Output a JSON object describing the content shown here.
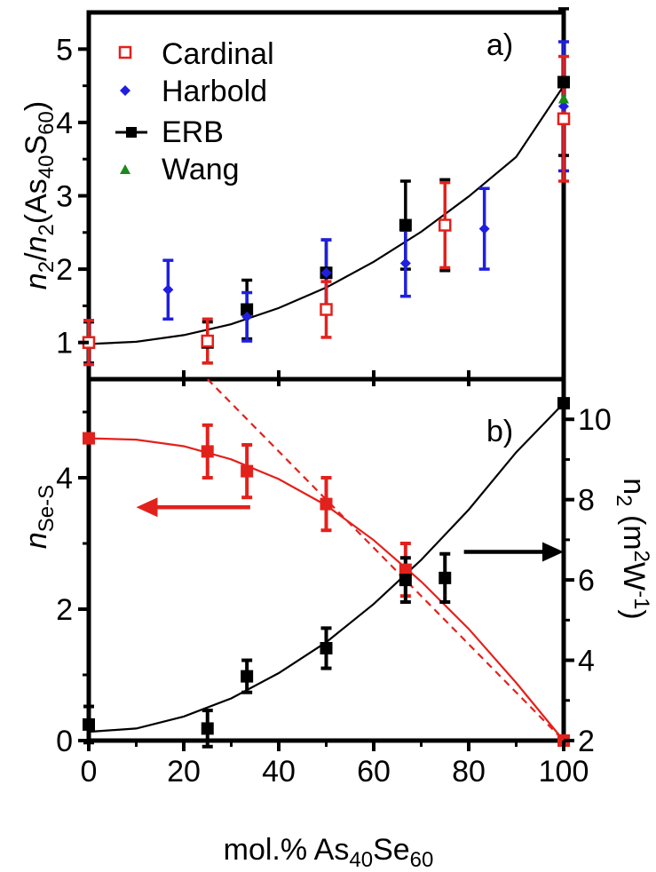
{
  "figure": {
    "xlabel": {
      "main": "mol.% As",
      "s1": "40",
      "mid": "Se",
      "s2": "60"
    }
  },
  "chart_data": [
    {
      "panel": "a)",
      "type": "scatter",
      "ylabel": {
        "n1": "n",
        "s1": "2",
        "slash": "/",
        "n2": "n",
        "s2": "2",
        "open": "(As",
        "s3": "40",
        "mid": "S",
        "s4": "60",
        "close": ")"
      },
      "xlim": [
        0,
        100
      ],
      "ylim": [
        0.5,
        5.5
      ],
      "xticks": [
        0,
        20,
        40,
        60,
        80,
        100
      ],
      "yticks": [
        1,
        2,
        3,
        4,
        5
      ],
      "grid": false,
      "legend_position": "top-left",
      "series": [
        {
          "name": "Cardinal",
          "marker": "open-square",
          "color": "#e3211c",
          "points": [
            {
              "x": 0,
              "y": 1.0,
              "err": 0.3
            },
            {
              "x": 25,
              "y": 1.02,
              "err": 0.3
            },
            {
              "x": 50,
              "y": 1.45,
              "err": 0.38
            },
            {
              "x": 75,
              "y": 2.6,
              "err": 0.58
            },
            {
              "x": 100,
              "y": 4.05,
              "err": 0.85
            }
          ]
        },
        {
          "name": "Harbold",
          "marker": "diamond",
          "color": "#1f1fe0",
          "points": [
            {
              "x": 0,
              "y": 1.0,
              "err": 0.3
            },
            {
              "x": 16.7,
              "y": 1.72,
              "err": 0.4
            },
            {
              "x": 33.3,
              "y": 1.35,
              "err": 0.33
            },
            {
              "x": 50,
              "y": 1.95,
              "err": 0.45
            },
            {
              "x": 66.7,
              "y": 2.08,
              "err": 0.45
            },
            {
              "x": 83.3,
              "y": 2.55,
              "err": 0.55
            },
            {
              "x": 100,
              "y": 4.22,
              "err": 0.88
            }
          ]
        },
        {
          "name": "ERB",
          "marker": "filled-square",
          "color": "#000000",
          "points": [
            {
              "x": 0,
              "y": 1.0,
              "err": 0.28
            },
            {
              "x": 25,
              "y": 1.0,
              "err": 0.28
            },
            {
              "x": 33.3,
              "y": 1.45,
              "err": 0.4
            },
            {
              "x": 50,
              "y": 1.95,
              "err": 0.45
            },
            {
              "x": 66.7,
              "y": 2.6,
              "err": 0.6
            },
            {
              "x": 75,
              "y": 2.6,
              "err": 0.62
            },
            {
              "x": 100,
              "y": 4.55,
              "err": 1.0
            }
          ]
        },
        {
          "name": "Wang",
          "marker": "triangle",
          "color": "#1a8a1a",
          "points": [
            {
              "x": 100,
              "y": 4.32,
              "err": 0
            }
          ]
        }
      ],
      "fit_curve": {
        "color": "#000000",
        "x": [
          0,
          10,
          20,
          30,
          40,
          50,
          60,
          70,
          80,
          90,
          100
        ],
        "y": [
          0.98,
          1.01,
          1.1,
          1.25,
          1.47,
          1.75,
          2.1,
          2.51,
          2.99,
          3.53,
          4.5
        ]
      }
    },
    {
      "panel": "b)",
      "type": "scatter",
      "ylabel_left": {
        "main": "n",
        "sub": "Se-S"
      },
      "ylabel_right": {
        "main": "n",
        "s1": "2",
        "mid": " (m",
        "sup1": "2",
        "w": "W",
        "sup2": "-1",
        "close": ")"
      },
      "xlim": [
        0,
        100
      ],
      "ylim_left": [
        0,
        5.5
      ],
      "ylim_right": [
        2,
        11
      ],
      "xticks": [
        0,
        20,
        40,
        60,
        80,
        100
      ],
      "yticks_left": [
        0,
        2,
        4
      ],
      "yticks_right": [
        2,
        4,
        6,
        8,
        10
      ],
      "grid": false,
      "series": [
        {
          "name": "",
          "axis": "left",
          "marker": "filled-square",
          "color": "#e3211c",
          "points": [
            {
              "x": 0,
              "y": 4.6,
              "err": 0
            },
            {
              "x": 25,
              "y": 4.4,
              "err": 0.4
            },
            {
              "x": 33.3,
              "y": 4.1,
              "err": 0.4
            },
            {
              "x": 50,
              "y": 3.6,
              "err": 0.4
            },
            {
              "x": 66.7,
              "y": 2.6,
              "err": 0.4
            },
            {
              "x": 100,
              "y": 0.0,
              "err": 0
            }
          ]
        },
        {
          "name": "",
          "axis": "right",
          "marker": "filled-square",
          "color": "#000000",
          "points": [
            {
              "x": 0,
              "y": 2.4,
              "err": 0.45
            },
            {
              "x": 25,
              "y": 2.3,
              "err": 0.45
            },
            {
              "x": 33.3,
              "y": 3.6,
              "err": 0.4
            },
            {
              "x": 50,
              "y": 4.3,
              "err": 0.5
            },
            {
              "x": 66.7,
              "y": 6.0,
              "err": 0.55
            },
            {
              "x": 75,
              "y": 6.05,
              "err": 0.6
            },
            {
              "x": 100,
              "y": 10.4,
              "err": 0
            }
          ]
        }
      ],
      "fit_left": {
        "color": "#e3211c",
        "x": [
          0,
          10,
          20,
          30,
          40,
          50,
          60,
          70,
          80,
          90,
          100
        ],
        "y": [
          4.6,
          4.58,
          4.48,
          4.28,
          3.98,
          3.58,
          3.05,
          2.42,
          1.7,
          0.88,
          0.0
        ]
      },
      "dashed_line": {
        "color": "#e3211c",
        "x": [
          25,
          100
        ],
        "y": [
          5.5,
          0.0
        ]
      },
      "fit_right": {
        "color": "#000000",
        "x": [
          0,
          10,
          20,
          30,
          40,
          50,
          60,
          70,
          80,
          90,
          100
        ],
        "y": [
          2.22,
          2.3,
          2.6,
          3.05,
          3.68,
          4.45,
          5.4,
          6.5,
          7.75,
          9.18,
          10.4
        ]
      },
      "arrows": [
        {
          "direction": "left",
          "color": "#e3211c",
          "axis": "left",
          "x_from": 34,
          "x_to": 10,
          "y": 3.55
        },
        {
          "direction": "right",
          "color": "#000000",
          "axis": "right",
          "x_from": 79,
          "x_to": 100,
          "y": 6.7
        }
      ]
    }
  ]
}
